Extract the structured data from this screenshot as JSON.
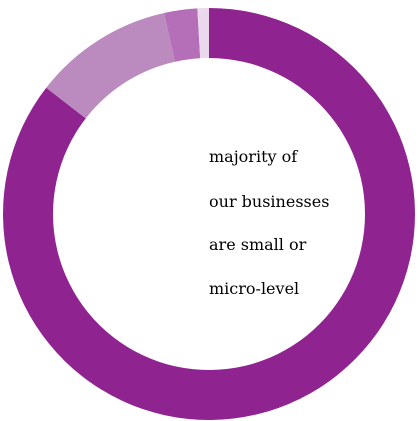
{
  "chart_data": {
    "type": "pie",
    "hole": "donut",
    "center_text": [
      "majority of",
      "our businesses",
      "are small or",
      "micro-level"
    ],
    "categories": [
      "",
      "",
      "",
      ""
    ],
    "values": [
      85.5,
      11.0,
      2.6,
      0.9
    ],
    "colors": [
      "#8f2390",
      "#bb8bc0",
      "#b56fb8",
      "#ead8ec"
    ]
  }
}
